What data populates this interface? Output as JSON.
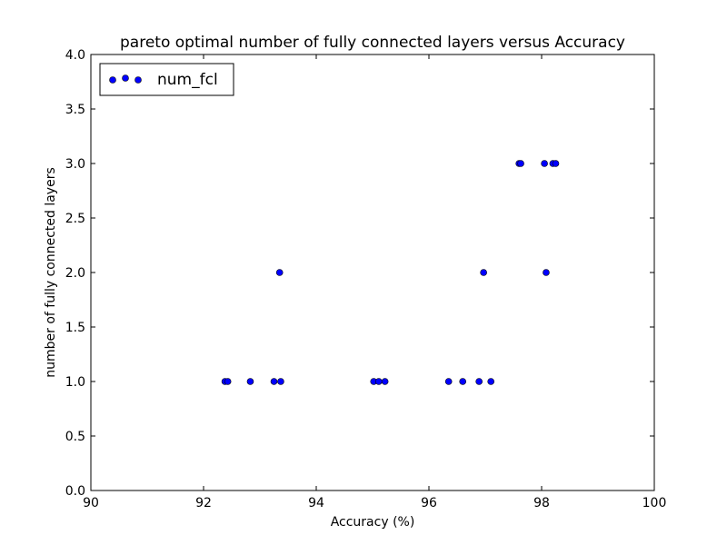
{
  "chart_data": {
    "type": "scatter",
    "title": "pareto optimal number of fully connected layers versus Accuracy",
    "xlabel": "Accuracy (%)",
    "ylabel": "number of fully connected layers",
    "xlim": [
      90,
      100
    ],
    "ylim": [
      0,
      4
    ],
    "x_ticks": [
      "90",
      "92",
      "94",
      "96",
      "98",
      "100"
    ],
    "y_ticks": [
      "0.0",
      "0.5",
      "1.0",
      "1.5",
      "2.0",
      "2.5",
      "3.0",
      "3.5",
      "4.0"
    ],
    "grid": false,
    "legend_position": "top-left",
    "marker_color": "#0000ff",
    "series": [
      {
        "name": "num_fcl",
        "points": [
          {
            "x": 92.38,
            "y": 1
          },
          {
            "x": 92.43,
            "y": 1
          },
          {
            "x": 92.83,
            "y": 1
          },
          {
            "x": 93.25,
            "y": 1
          },
          {
            "x": 93.37,
            "y": 1
          },
          {
            "x": 93.35,
            "y": 2
          },
          {
            "x": 95.02,
            "y": 1
          },
          {
            "x": 95.11,
            "y": 1
          },
          {
            "x": 95.22,
            "y": 1
          },
          {
            "x": 96.35,
            "y": 1
          },
          {
            "x": 96.6,
            "y": 1
          },
          {
            "x": 96.89,
            "y": 1
          },
          {
            "x": 97.1,
            "y": 1
          },
          {
            "x": 96.97,
            "y": 2
          },
          {
            "x": 97.6,
            "y": 3
          },
          {
            "x": 97.63,
            "y": 3
          },
          {
            "x": 98.05,
            "y": 3
          },
          {
            "x": 98.2,
            "y": 3
          },
          {
            "x": 98.25,
            "y": 3
          },
          {
            "x": 98.08,
            "y": 2
          }
        ]
      }
    ]
  }
}
